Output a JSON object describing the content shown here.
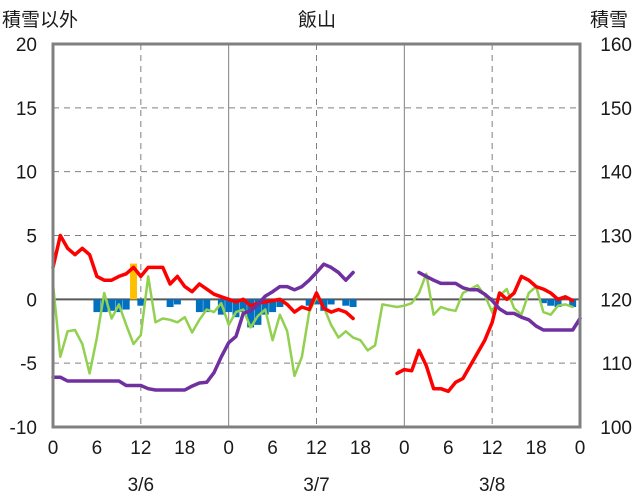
{
  "chart_data": {
    "type": "line",
    "title": "飯山",
    "left_axis_title": "積雪以外",
    "right_axis_title": "積雪",
    "ylim_left": [
      -10,
      20
    ],
    "ylim_right": [
      100,
      160
    ],
    "yticks_left": [
      "20",
      "15",
      "10",
      "5",
      "0",
      "-5",
      "-10"
    ],
    "yticks_right": [
      "160",
      "150",
      "140",
      "130",
      "120",
      "110",
      "100"
    ],
    "xticks": [
      "0",
      "6",
      "12",
      "18",
      "0",
      "6",
      "12",
      "18",
      "0",
      "6",
      "12",
      "18",
      "0"
    ],
    "xlim_hours": [
      0,
      72
    ],
    "date_labels": [
      {
        "label": "3/6",
        "hour": 12
      },
      {
        "label": "3/7",
        "hour": 36
      },
      {
        "label": "3/8",
        "hour": 60
      }
    ],
    "grid": true,
    "series": [
      {
        "key": "temperature",
        "color": "#ff0000",
        "axis": "left",
        "points": [
          [
            0,
            2.5
          ],
          [
            1,
            5
          ],
          [
            2,
            4
          ],
          [
            3,
            3.5
          ],
          [
            4,
            4
          ],
          [
            5,
            3.5
          ],
          [
            6,
            1.8
          ],
          [
            7,
            1.5
          ],
          [
            8,
            1.5
          ],
          [
            9,
            1.8
          ],
          [
            10,
            2
          ],
          [
            11,
            2.5
          ],
          [
            12,
            1.8
          ],
          [
            13,
            2.5
          ],
          [
            14,
            2.5
          ],
          [
            15,
            2.5
          ],
          [
            16,
            1.2
          ],
          [
            17,
            1.8
          ],
          [
            18,
            1
          ],
          [
            19,
            0.6
          ],
          [
            20,
            1.2
          ],
          [
            21,
            0.8
          ],
          [
            22,
            0.4
          ],
          [
            23,
            0.2
          ],
          [
            24,
            0
          ],
          [
            25,
            -0.2
          ],
          [
            26,
            0
          ],
          [
            27,
            -0.5
          ],
          [
            28,
            -0.3
          ],
          [
            29,
            -0.2
          ],
          [
            30,
            -0.1
          ],
          [
            31,
            0
          ],
          [
            32,
            -0.4
          ],
          [
            33,
            -1
          ],
          [
            34,
            -0.6
          ],
          [
            35,
            -0.8
          ],
          [
            36,
            0.5
          ],
          [
            37,
            -0.7
          ],
          [
            38,
            -1
          ],
          [
            39,
            -0.8
          ],
          [
            40,
            -1
          ],
          [
            41,
            -1.5
          ],
          null,
          [
            47,
            -5.8
          ],
          [
            48,
            -5.5
          ],
          [
            49,
            -5.6
          ],
          [
            50,
            -4
          ],
          [
            51,
            -5.2
          ],
          [
            52,
            -7
          ],
          [
            53,
            -7
          ],
          [
            54,
            -7.2
          ],
          [
            55,
            -6.5
          ],
          [
            56,
            -6.2
          ],
          [
            57,
            -5.2
          ],
          [
            58,
            -4.2
          ],
          [
            59,
            -3.2
          ],
          [
            60,
            -1.8
          ],
          [
            61,
            0.5
          ],
          [
            62,
            0
          ],
          [
            63,
            0.5
          ],
          [
            64,
            1.8
          ],
          [
            65,
            1.5
          ],
          [
            66,
            1
          ],
          [
            67,
            0.8
          ],
          [
            68,
            0.5
          ],
          [
            69,
            0
          ],
          [
            70,
            0.2
          ],
          [
            71,
            -0.1
          ]
        ]
      },
      {
        "key": "wind_or_other",
        "color": "#92d050",
        "axis": "left",
        "points": [
          [
            0,
            1.2
          ],
          [
            1,
            -4.5
          ],
          [
            2,
            -2.5
          ],
          [
            3,
            -2.4
          ],
          [
            4,
            -3.5
          ],
          [
            5,
            -5.8
          ],
          [
            6,
            -3
          ],
          [
            7,
            0.5
          ],
          [
            8,
            -1.5
          ],
          [
            9,
            -0.4
          ],
          [
            10,
            -2
          ],
          [
            11,
            -3.5
          ],
          [
            12,
            -2.8
          ],
          [
            13,
            1.8
          ],
          [
            14,
            -1.8
          ],
          [
            15,
            -1.5
          ],
          [
            16,
            -1.6
          ],
          [
            17,
            -1.8
          ],
          [
            18,
            -1.4
          ],
          [
            19,
            -2.6
          ],
          [
            20,
            -1.6
          ],
          [
            21,
            -0.8
          ],
          [
            22,
            -1
          ],
          [
            23,
            -0.3
          ],
          [
            24,
            -2
          ],
          [
            25,
            -1
          ],
          [
            26,
            -0.8
          ],
          [
            27,
            -2.2
          ],
          [
            28,
            -1.3
          ],
          [
            29,
            -0.8
          ],
          [
            30,
            -3.2
          ],
          [
            31,
            -1.2
          ],
          [
            32,
            -2.5
          ],
          [
            33,
            -6
          ],
          [
            34,
            -4.5
          ],
          [
            35,
            -1
          ],
          [
            36,
            0.2
          ],
          [
            37,
            -0.6
          ],
          [
            38,
            -2
          ],
          [
            39,
            -3
          ],
          [
            40,
            -2.5
          ],
          [
            41,
            -3
          ],
          [
            42,
            -3.2
          ],
          [
            43,
            -4
          ],
          [
            44,
            -3.6
          ],
          [
            45,
            -0.4
          ],
          [
            46,
            -0.5
          ],
          [
            47,
            -0.6
          ],
          [
            48,
            -0.5
          ],
          [
            49,
            -0.3
          ],
          [
            50,
            0.5
          ],
          [
            51,
            2
          ],
          [
            52,
            -1.2
          ],
          [
            53,
            -0.6
          ],
          [
            54,
            -0.8
          ],
          [
            55,
            -0.9
          ],
          [
            56,
            0.5
          ],
          [
            57,
            0.8
          ],
          [
            58,
            1.1
          ],
          [
            59,
            0.3
          ],
          [
            60,
            -1
          ],
          [
            61,
            0.3
          ],
          [
            62,
            0.8
          ],
          [
            63,
            -0.7
          ],
          [
            64,
            -1.2
          ],
          [
            65,
            0.5
          ],
          [
            66,
            1
          ],
          [
            67,
            -1
          ],
          [
            68,
            -1.2
          ],
          [
            69,
            -0.5
          ],
          [
            70,
            -0.4
          ],
          [
            71,
            -0.6
          ]
        ]
      },
      {
        "key": "snow_depth",
        "color": "#7030a0",
        "axis": "right",
        "points": [
          [
            0,
            107.8
          ],
          [
            1,
            107.8
          ],
          [
            2,
            107.2
          ],
          [
            3,
            107.2
          ],
          [
            4,
            107.2
          ],
          [
            5,
            107.2
          ],
          [
            6,
            107.2
          ],
          [
            7,
            107.2
          ],
          [
            8,
            107.2
          ],
          [
            9,
            107.2
          ],
          [
            10,
            106.5
          ],
          [
            11,
            106.5
          ],
          [
            12,
            106.5
          ],
          [
            13,
            106
          ],
          [
            14,
            105.8
          ],
          [
            15,
            105.8
          ],
          [
            16,
            105.8
          ],
          [
            17,
            105.8
          ],
          [
            18,
            105.8
          ],
          [
            19,
            106.4
          ],
          [
            20,
            106.9
          ],
          [
            21,
            107
          ],
          [
            22,
            108.5
          ],
          [
            23,
            111
          ],
          [
            24,
            113.2
          ],
          [
            25,
            114.2
          ],
          [
            26,
            117.8
          ],
          [
            27,
            118.2
          ],
          [
            28,
            119.2
          ],
          [
            29,
            120.5
          ],
          [
            30,
            121.2
          ],
          [
            31,
            122
          ],
          [
            32,
            122
          ],
          [
            33,
            121.5
          ],
          [
            34,
            122
          ],
          [
            35,
            123
          ],
          [
            36,
            124.2
          ],
          [
            37,
            125.5
          ],
          [
            38,
            125
          ],
          [
            39,
            124.2
          ],
          [
            40,
            123
          ],
          [
            41,
            124.2
          ],
          null,
          [
            50,
            124.2
          ],
          [
            51,
            123.6
          ],
          [
            52,
            123
          ],
          [
            53,
            122.5
          ],
          [
            54,
            122.5
          ],
          [
            55,
            122.5
          ],
          [
            56,
            121.8
          ],
          [
            57,
            121.5
          ],
          [
            58,
            121.5
          ],
          [
            59,
            120.8
          ],
          [
            60,
            119.8
          ],
          [
            61,
            118.5
          ],
          [
            62,
            117.8
          ],
          [
            63,
            117.8
          ],
          [
            64,
            117.2
          ],
          [
            65,
            116.8
          ],
          [
            66,
            115.8
          ],
          [
            67,
            115.2
          ],
          [
            68,
            115.2
          ],
          [
            69,
            115.2
          ],
          [
            70,
            115.2
          ],
          [
            71,
            115.2
          ],
          [
            72,
            117
          ]
        ]
      }
    ],
    "bars": [
      {
        "key": "precipitation",
        "color": "#ffc000",
        "axis": "left",
        "data": [
          [
            11,
            2.8
          ]
        ]
      },
      {
        "key": "below_zero_blocks",
        "color": "#0070c0",
        "axis": "left",
        "data": [
          [
            6,
            -1
          ],
          [
            7,
            -1
          ],
          [
            8,
            -0.9
          ],
          [
            9,
            -1
          ],
          [
            10,
            -0.8
          ],
          [
            12,
            -0.5
          ],
          [
            16,
            -0.6
          ],
          [
            17,
            -0.4
          ],
          [
            20,
            -1
          ],
          [
            21,
            -1
          ],
          [
            23,
            -1.2
          ],
          [
            24,
            -1
          ],
          [
            25,
            -1.4
          ],
          [
            26,
            -1
          ],
          [
            27,
            -2.2
          ],
          [
            28,
            -2
          ],
          [
            29,
            -1.2
          ],
          [
            30,
            -1
          ],
          [
            31,
            -0.6
          ],
          [
            35,
            -0.5
          ],
          [
            36,
            -0.4
          ],
          [
            37,
            -0.9
          ],
          [
            38,
            -0.4
          ],
          [
            40,
            -0.5
          ],
          [
            41,
            -0.6
          ],
          [
            67,
            -0.3
          ],
          [
            68,
            -0.5
          ],
          [
            69,
            -0.6
          ],
          [
            71,
            -0.6
          ]
        ]
      }
    ]
  }
}
